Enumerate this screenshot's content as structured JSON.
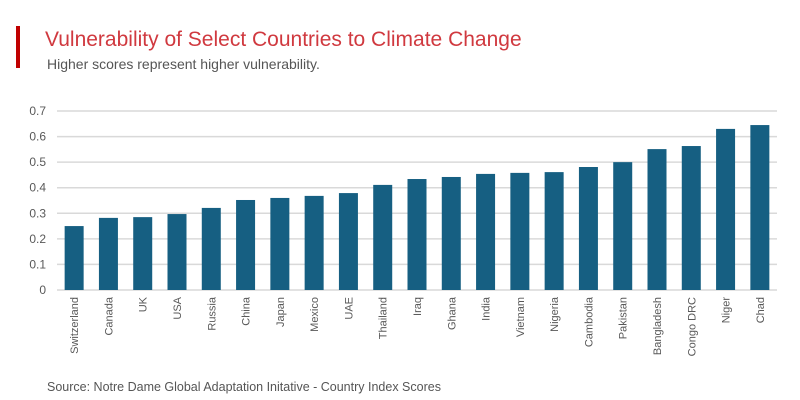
{
  "title": "Vulnerability of Select Countries to Climate Change",
  "subtitle": "Higher scores represent higher vulnerability.",
  "source": "Source: Notre Dame Global Adaptation Initative - Country Index Scores",
  "colors": {
    "accent": "#c00000",
    "title": "#d0393f",
    "bar": "#165f82",
    "grid": "#d9d9d9"
  },
  "chart_data": {
    "type": "bar",
    "title": "Vulnerability of Select Countries to Climate Change",
    "subtitle": "Higher scores represent higher vulnerability.",
    "xlabel": "",
    "ylabel": "",
    "ylim": [
      0,
      0.7
    ],
    "yticks": [
      "0",
      "0.1",
      "0.2",
      "0.3",
      "0.4",
      "0.5",
      "0.6",
      "0.7"
    ],
    "grid": true,
    "categories": [
      "Switzerland",
      "Canada",
      "UK",
      "USA",
      "Russia",
      "China",
      "Japan",
      "Mexico",
      "UAE",
      "Thailand",
      "Iraq",
      "Ghana",
      "India",
      "Vietnam",
      "Nigeria",
      "Cambodia",
      "Pakistan",
      "Bangladesh",
      "Congo DRC",
      "Niger",
      "Chad"
    ],
    "values": [
      0.25,
      0.282,
      0.285,
      0.297,
      0.321,
      0.352,
      0.36,
      0.368,
      0.379,
      0.411,
      0.434,
      0.442,
      0.454,
      0.458,
      0.461,
      0.481,
      0.5,
      0.551,
      0.563,
      0.63,
      0.645
    ]
  }
}
